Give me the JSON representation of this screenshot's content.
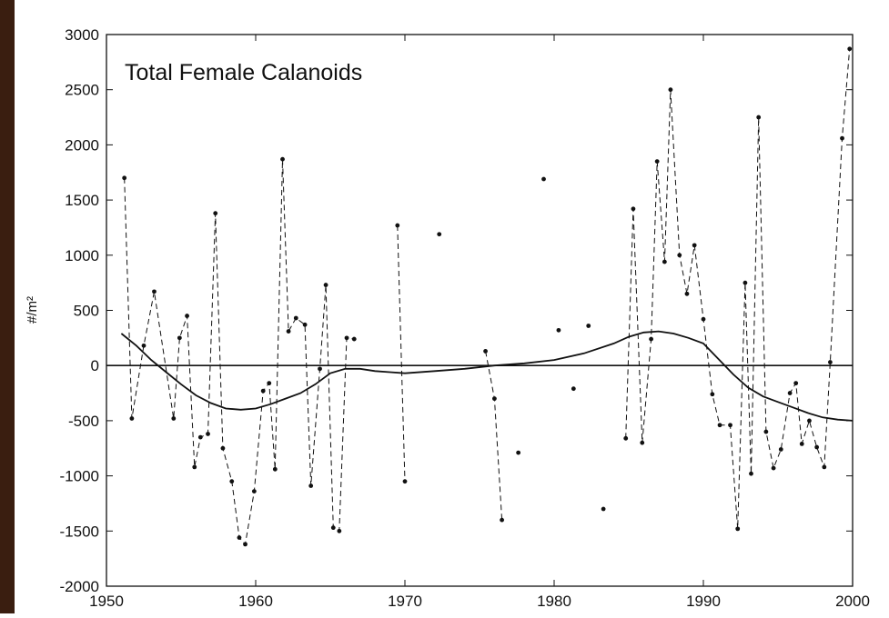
{
  "chart_data": {
    "type": "line",
    "title": "Total Female Calanoids",
    "ylabel": "#/m²",
    "xlim": [
      1950,
      2000
    ],
    "xticks": [
      1950,
      1960,
      1970,
      1980,
      1990,
      2000
    ],
    "ylim": [
      -2000,
      3000
    ],
    "yticks": [
      -2000,
      -1500,
      -1000,
      -500,
      0,
      500,
      1000,
      1500,
      2000,
      2500,
      3000
    ],
    "reference_line": 0,
    "series": [
      {
        "color": "#111111",
        "style": "dashed",
        "markers": true,
        "x": [
          1951.2,
          1951.7,
          1952.5,
          1953.2,
          1954.5,
          1954.9,
          1955.4,
          1955.9,
          1956.3,
          1956.8,
          1957.3,
          1957.8,
          1958.4,
          1958.9,
          1959.3,
          1959.9,
          1960.5,
          1960.9,
          1961.3,
          1961.8,
          1962.2,
          1962.7,
          1963.3,
          1963.7,
          1964.3,
          1964.7,
          1965.2,
          1965.6,
          1966.1,
          1966.6,
          1968,
          1969.5,
          1970,
          1971,
          1972.3,
          1974,
          1975.4,
          1976,
          1976.5,
          1977,
          1977.6,
          1978.5,
          1979.3,
          1980,
          1980.3,
          1980.8,
          1981.3,
          1981.8,
          1982.3,
          1982.8,
          1983.3,
          1984,
          1984.8,
          1985.3,
          1985.9,
          1986.5,
          1986.9,
          1987.4,
          1987.8,
          1988.4,
          1988.9,
          1989.4,
          1990,
          1990.6,
          1991.1,
          1991.8,
          1992.3,
          1992.8,
          1993.2,
          1993.7,
          1994.2,
          1994.7,
          1995.2,
          1995.8,
          1996.2,
          1996.6,
          1997.1,
          1997.6,
          1998.1,
          1998.5,
          1999.3,
          1999.8
        ],
        "values": [
          1700,
          -480,
          180,
          670,
          -480,
          250,
          450,
          -920,
          -650,
          -620,
          1380,
          -750,
          -1050,
          -1560,
          -1620,
          -1140,
          -230,
          -160,
          -940,
          1870,
          310,
          430,
          370,
          -1090,
          -30,
          730,
          -1470,
          -1500,
          250,
          240,
          null,
          1270,
          -1050,
          null,
          1190,
          null,
          130,
          -300,
          -1400,
          null,
          -790,
          null,
          1690,
          null,
          320,
          null,
          -210,
          null,
          360,
          null,
          -1300,
          null,
          -660,
          1420,
          -700,
          240,
          1850,
          940,
          2500,
          1000,
          650,
          1090,
          420,
          -260,
          -540,
          -540,
          -1480,
          750,
          -980,
          2250,
          -600,
          -930,
          -760,
          -250,
          -160,
          -710,
          -500,
          -740,
          -920,
          30,
          2060,
          2870
        ]
      },
      {
        "color": "#111111",
        "style": "solid",
        "markers": false,
        "x": [
          1951,
          1952,
          1953,
          1954,
          1955,
          1956,
          1957,
          1958,
          1959,
          1960,
          1961,
          1962,
          1963,
          1964,
          1965,
          1966,
          1967,
          1968,
          1969,
          1970,
          1972,
          1974,
          1976,
          1978,
          1980,
          1982,
          1984,
          1985,
          1986,
          1987,
          1988,
          1989,
          1990,
          1991,
          1992,
          1993,
          1994,
          1995,
          1996,
          1997,
          1998,
          1999,
          2000
        ],
        "values": [
          290,
          180,
          50,
          -60,
          -170,
          -270,
          -340,
          -390,
          -400,
          -390,
          -350,
          -300,
          -250,
          -170,
          -70,
          -30,
          -30,
          -50,
          -60,
          -70,
          -50,
          -30,
          0,
          20,
          50,
          110,
          200,
          260,
          300,
          310,
          290,
          250,
          200,
          60,
          -80,
          -200,
          -280,
          -330,
          -380,
          -430,
          -470,
          -490,
          -500
        ]
      }
    ]
  }
}
